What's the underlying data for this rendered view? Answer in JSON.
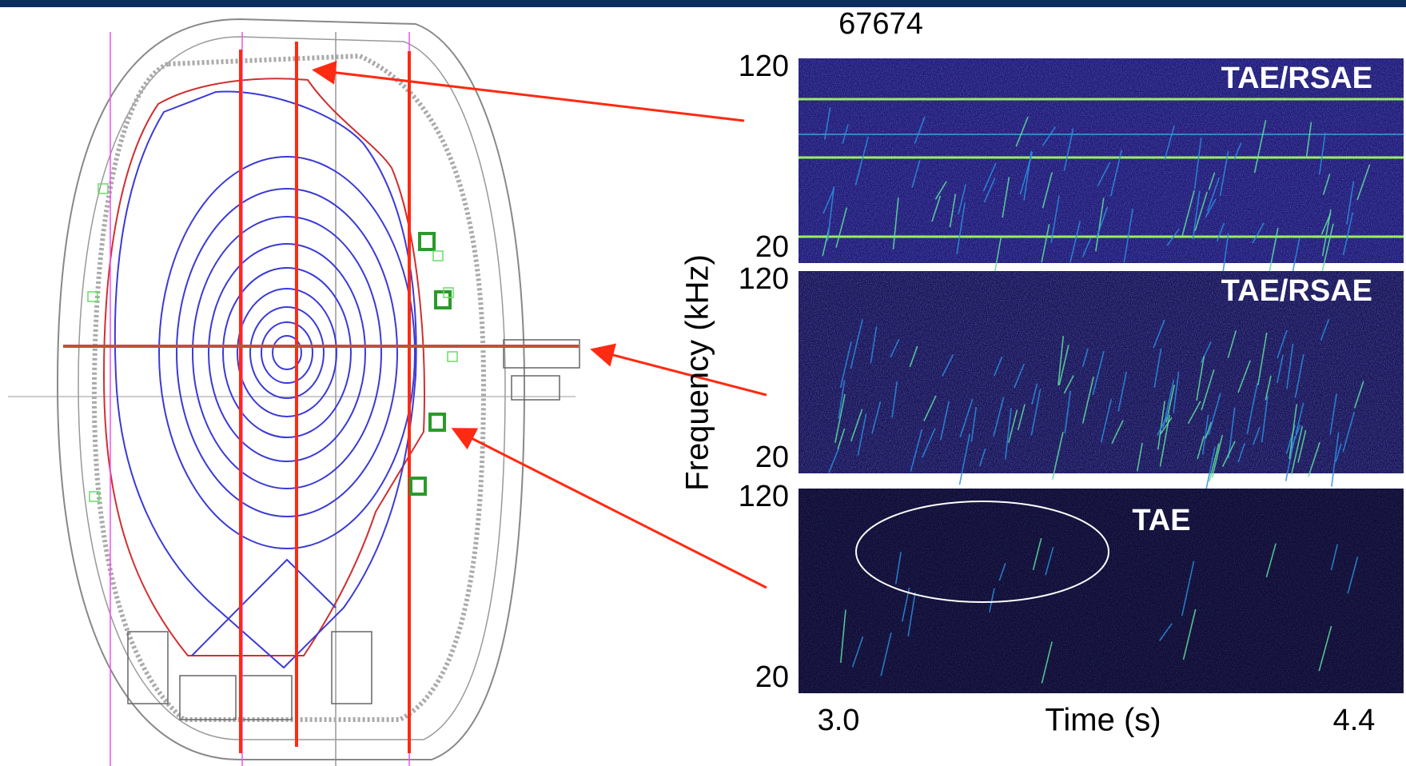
{
  "shot": "67674",
  "axis": {
    "y_label": "Frequency (kHz)",
    "x_label": "Time (s)",
    "x_start": "3.0",
    "x_end": "4.4"
  },
  "panels": [
    {
      "y_top": "120",
      "y_bottom": "20",
      "label": "TAE/RSAE"
    },
    {
      "y_top": "120",
      "y_bottom": "20",
      "label": "TAE/RSAE"
    },
    {
      "y_top": "120",
      "y_bottom": "20",
      "label": "TAE"
    }
  ]
}
